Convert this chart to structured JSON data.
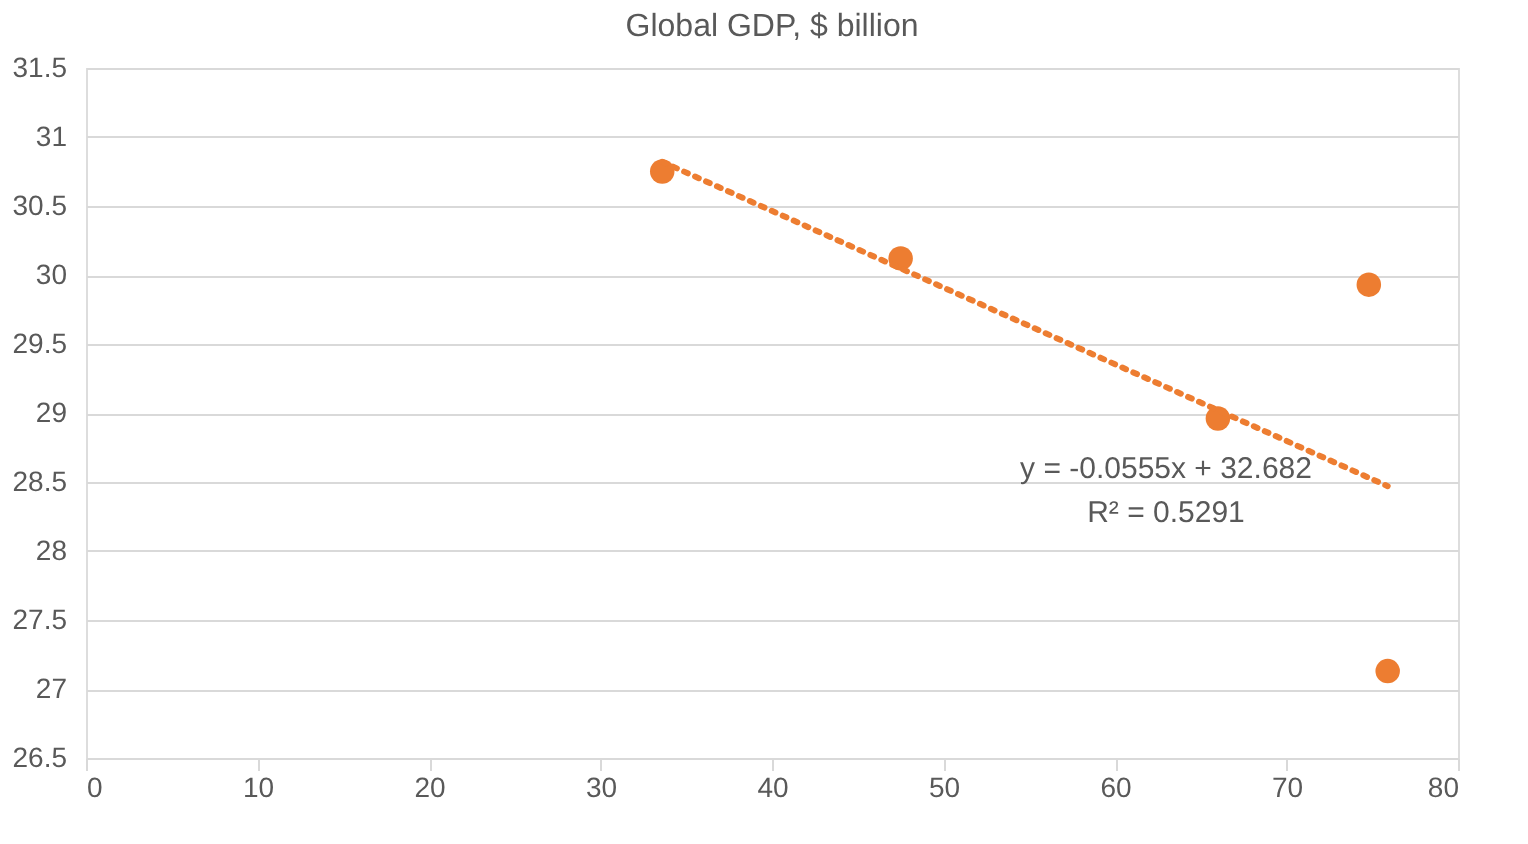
{
  "chart_data": {
    "type": "scatter",
    "title": "Global GDP, $ billion",
    "xlim": [
      0,
      80
    ],
    "xticks": [
      0,
      10,
      20,
      30,
      40,
      50,
      60,
      70,
      80
    ],
    "ylim": [
      26.5,
      31.5
    ],
    "yticks": [
      26.5,
      27,
      27.5,
      28,
      28.5,
      29,
      29.5,
      30,
      30.5,
      31,
      31.5
    ],
    "grid": "y",
    "marker": "circle",
    "series": [
      {
        "color": "#ed7d31",
        "x": [
          33.6,
          47.5,
          66.0,
          74.8,
          75.9
        ],
        "values": [
          30.75,
          30.12,
          28.96,
          29.93,
          27.13
        ]
      },
      {
        "type": "line",
        "color": "#ed7d31",
        "marker": "none",
        "line_style": "dotted",
        "x": [
          33.6,
          75.9
        ],
        "values": [
          30.82,
          28.47
        ]
      }
    ],
    "annotations": [
      "y = -0.0555x + 32.682",
      "R² = 0.5291"
    ]
  }
}
